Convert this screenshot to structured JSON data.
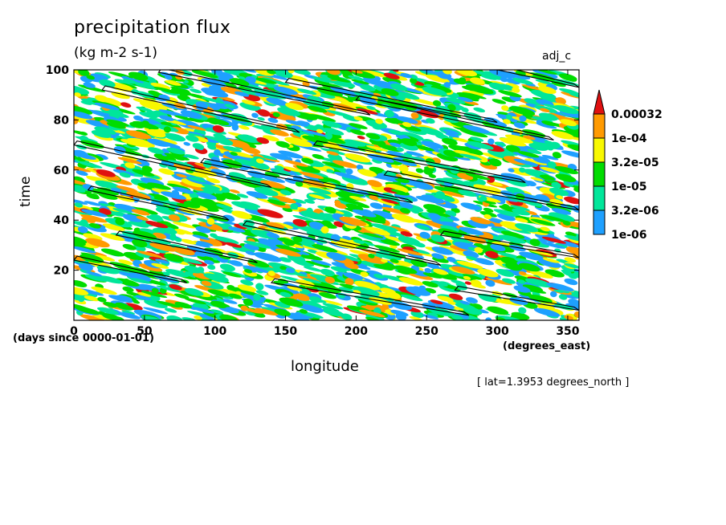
{
  "title": "precipitation flux",
  "units": "(kg m-2 s-1)",
  "run_label": "adj_c",
  "lat_note": "[ lat=1.3953 degrees_north ]",
  "colors": {
    "below_1e-06": "#ffffff",
    "1e-06_3.2e-06": "#1ea0ff",
    "3.2e-06_1e-05": "#00e69a",
    "1e-05_3.2e-05": "#00dc00",
    "3.2e-05_1e-04": "#f8f800",
    "1e-04_0.00032": "#ff9a00",
    "above_0.00032": "#e01010",
    "contour": "#000000"
  },
  "chart_data": {
    "type": "heatmap",
    "title": "precipitation flux",
    "subtitle": "(kg m-2 s-1)",
    "xlabel": "longitude",
    "xunits": "(degrees_east)",
    "ylabel": "time",
    "yunits": "(days since 0000-01-01)",
    "xlim": [
      0,
      358
    ],
    "ylim": [
      0,
      100
    ],
    "xticks": [
      0,
      50,
      100,
      150,
      200,
      250,
      300,
      350
    ],
    "yticks": [
      20,
      40,
      60,
      80,
      100
    ],
    "colorbar": {
      "levels": [
        "0.00032",
        "1e-04",
        "3.2e-05",
        "1e-05",
        "3.2e-06",
        "1e-06"
      ],
      "extend": "max"
    },
    "feature": "westward-propagating rain streaks with black contour outlines over a time-longitude field",
    "contour_lines": [
      {
        "x": [
          0,
          80
        ],
        "y": [
          24,
          15
        ]
      },
      {
        "x": [
          10,
          110
        ],
        "y": [
          52,
          40
        ]
      },
      {
        "x": [
          0,
          140
        ],
        "y": [
          70,
          53
        ]
      },
      {
        "x": [
          20,
          160
        ],
        "y": [
          92,
          75
        ]
      },
      {
        "x": [
          60,
          210
        ],
        "y": [
          99,
          82
        ]
      },
      {
        "x": [
          90,
          240
        ],
        "y": [
          63,
          47
        ]
      },
      {
        "x": [
          120,
          260
        ],
        "y": [
          38,
          22
        ]
      },
      {
        "x": [
          140,
          280
        ],
        "y": [
          15,
          2
        ]
      },
      {
        "x": [
          200,
          340
        ],
        "y": [
          88,
          72
        ]
      },
      {
        "x": [
          220,
          358
        ],
        "y": [
          58,
          44
        ]
      },
      {
        "x": [
          260,
          358
        ],
        "y": [
          34,
          25
        ]
      },
      {
        "x": [
          270,
          358
        ],
        "y": [
          12,
          4
        ]
      },
      {
        "x": [
          30,
          130
        ],
        "y": [
          34,
          23
        ]
      },
      {
        "x": [
          150,
          300
        ],
        "y": [
          95,
          79
        ]
      },
      {
        "x": [
          300,
          358
        ],
        "y": [
          100,
          93
        ]
      },
      {
        "x": [
          170,
          320
        ],
        "y": [
          70,
          55
        ]
      }
    ]
  }
}
